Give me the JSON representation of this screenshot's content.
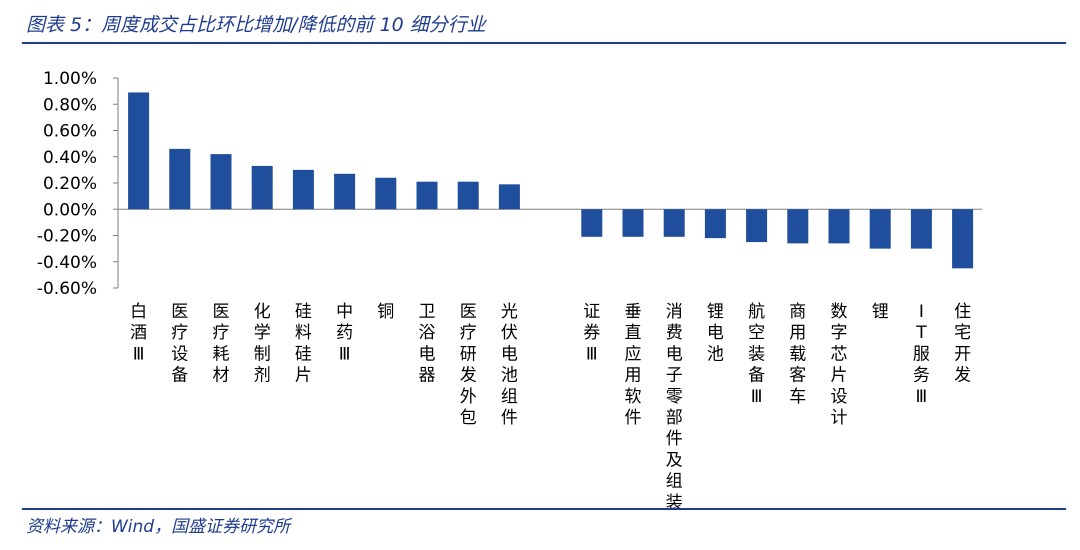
{
  "header": {
    "title": "图表 5：周度成交占比环比增加/降低的前 10 细分行业"
  },
  "footer": {
    "source": "资料来源：Wind，国盛证券研究所"
  },
  "colors": {
    "bar": "#1f4e9c",
    "rule": "#1f3c8f",
    "axis": "#7f7f7f"
  },
  "chart_data": {
    "type": "bar",
    "title": "",
    "xlabel": "",
    "ylabel": "",
    "ylim": [
      -0.6,
      1.0
    ],
    "yticks": [
      1.0,
      0.8,
      0.6,
      0.4,
      0.2,
      0.0,
      -0.2,
      -0.4,
      -0.6
    ],
    "ytick_labels": [
      "1.00%",
      "0.80%",
      "0.60%",
      "0.40%",
      "0.20%",
      "0.00%",
      "-0.20%",
      "-0.40%",
      "-0.60%"
    ],
    "unit": "%",
    "groups": [
      {
        "categories": [
          "白酒Ⅲ",
          "医疗设备",
          "医疗耗材",
          "化学制剂",
          "硅料硅片",
          "中药Ⅲ",
          "铜",
          "卫浴电器",
          "医疗研发外包",
          "光伏电池组件"
        ],
        "values": [
          0.89,
          0.46,
          0.42,
          0.33,
          0.3,
          0.27,
          0.24,
          0.21,
          0.21,
          0.19
        ]
      },
      {
        "categories": [
          "证券Ⅲ",
          "垂直应用软件",
          "消费电子零部件及组装",
          "锂电池",
          "航空装备Ⅲ",
          "商用载客车",
          "数字芯片设计",
          "锂",
          "IT服务Ⅲ",
          "住宅开发"
        ],
        "values": [
          -0.21,
          -0.21,
          -0.21,
          -0.22,
          -0.25,
          -0.26,
          -0.26,
          -0.3,
          -0.3,
          -0.45
        ]
      }
    ]
  }
}
